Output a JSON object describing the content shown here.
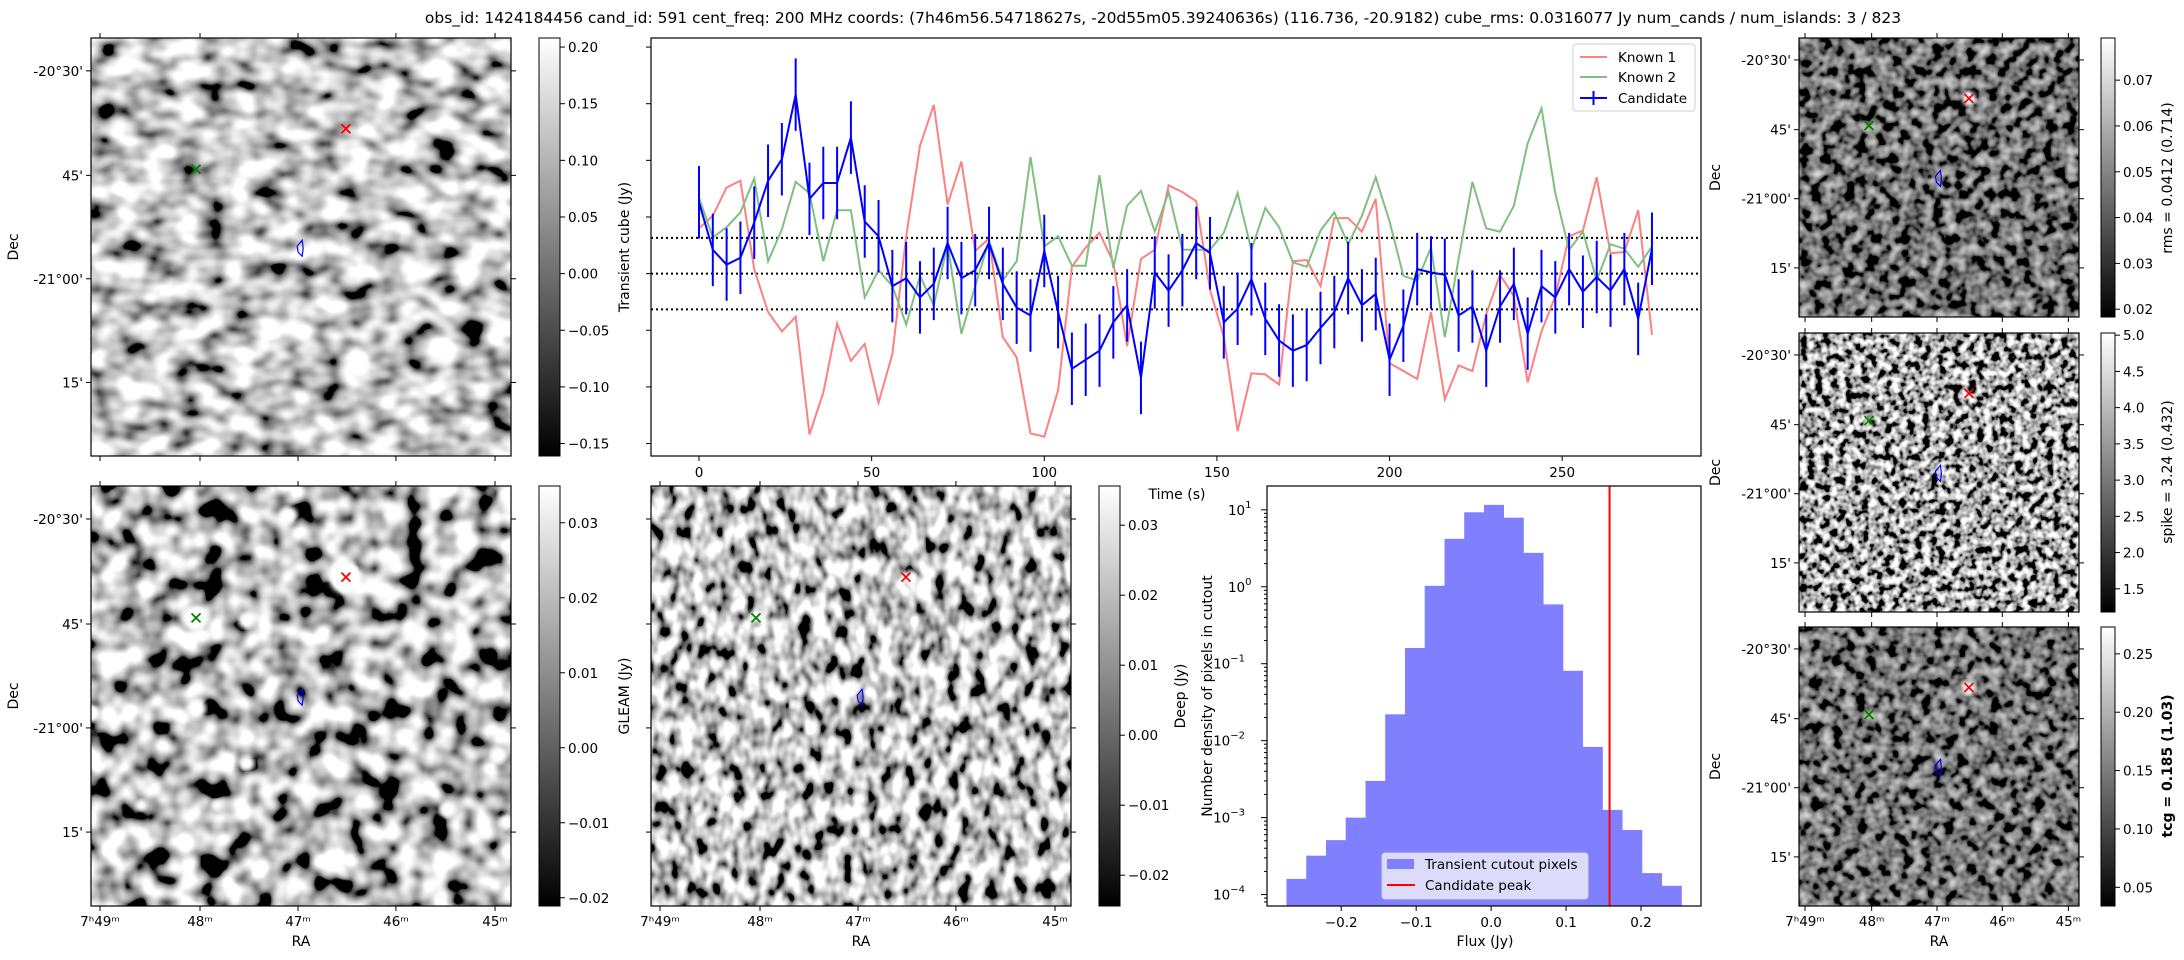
{
  "title": "obs_id: 1424184456 cand_id: 591 cent_freq: 200 MHz coords: (7h46m56.54718627s, -20d55m05.39240636s) (116.736, -20.9182) cube_rms: 0.0316077 Jy num_cands / num_islands: 3 / 823",
  "axes": {
    "ra_label": "RA",
    "dec_label": "Dec",
    "ra_ticks": [
      "7ʰ49ᵐ",
      "48ᵐ",
      "47ᵐ",
      "46ᵐ",
      "45ᵐ"
    ],
    "dec_ticks": [
      "-20°30'",
      "45'",
      "-21°00'",
      "15'"
    ]
  },
  "colors": {
    "known1": "#ff8080",
    "known2": "#80bf80",
    "candidate": "#0000ff",
    "hist": "#8080ff",
    "peak": "#ff0000"
  },
  "colorbars": {
    "transient": {
      "range": [
        -0.161,
        0.208
      ],
      "ticks": [
        [
          "0.20",
          0.2
        ],
        [
          "0.15",
          0.15
        ],
        [
          "0.10",
          0.1
        ],
        [
          "0.05",
          0.05
        ],
        [
          "0.00",
          0.0
        ],
        [
          "−0.05",
          -0.05
        ],
        [
          "−0.10",
          -0.1
        ],
        [
          "−0.15",
          -0.15
        ]
      ]
    },
    "gleam": {
      "label": "GLEAM (Jy)",
      "range": [
        -0.0211,
        0.0349
      ],
      "ticks": [
        [
          "0.03",
          0.03
        ],
        [
          "0.02",
          0.02
        ],
        [
          "0.01",
          0.01
        ],
        [
          "0.00",
          0.0
        ],
        [
          "−0.01",
          -0.01
        ],
        [
          "−0.02",
          -0.02
        ]
      ]
    },
    "deep": {
      "label": "Deep (Jy)",
      "range": [
        -0.0244,
        0.0356
      ],
      "ticks": [
        [
          "0.03",
          0.03
        ],
        [
          "0.02",
          0.02
        ],
        [
          "0.01",
          0.01
        ],
        [
          "0.00",
          0.0
        ],
        [
          "−0.01",
          -0.01
        ],
        [
          "−0.02",
          -0.02
        ]
      ]
    },
    "rms": {
      "label": "rms = 0.0412 (0.714)",
      "range": [
        0.0183,
        0.0792
      ],
      "ticks": [
        [
          "0.07",
          0.07
        ],
        [
          "0.06",
          0.06
        ],
        [
          "0.05",
          0.05
        ],
        [
          "0.04",
          0.04
        ],
        [
          "0.03",
          0.03
        ],
        [
          "0.02",
          0.02
        ]
      ]
    },
    "spike": {
      "label": "spike = 3.24 (0.432)",
      "range": [
        1.18,
        5.03
      ],
      "ticks": [
        [
          "5.0",
          5.0
        ],
        [
          "4.5",
          4.5
        ],
        [
          "4.0",
          4.0
        ],
        [
          "3.5",
          3.5
        ],
        [
          "3.0",
          3.0
        ],
        [
          "2.5",
          2.5
        ],
        [
          "2.0",
          2.0
        ],
        [
          "1.5",
          1.5
        ]
      ]
    },
    "tcg": {
      "label": "tcg = 0.185 (1.03)",
      "range": [
        0.034,
        0.273
      ],
      "ticks": [
        [
          "0.25",
          0.25
        ],
        [
          "0.20",
          0.2
        ],
        [
          "0.15",
          0.15
        ],
        [
          "0.10",
          0.1
        ],
        [
          "0.05",
          0.05
        ]
      ]
    }
  },
  "chart_data": [
    {
      "type": "line",
      "xlabel": "Time (s)",
      "ylabel": "Transient cube (Jy)",
      "xlim": [
        -13.9,
        290.2
      ],
      "ylim": [
        -0.161,
        0.208
      ],
      "xticks": [
        0,
        50,
        100,
        150,
        200,
        250
      ],
      "hlines": [
        0.0316,
        0.0,
        -0.0316
      ],
      "legend_position": "top-right",
      "x": [
        0,
        4,
        8,
        12,
        16,
        20,
        24,
        28,
        32,
        36,
        40,
        44,
        48,
        52,
        56,
        60,
        64,
        68,
        72,
        76,
        80,
        84,
        88,
        92,
        96,
        100,
        104,
        108,
        112,
        116,
        120,
        124,
        128,
        132,
        136,
        140,
        144,
        148,
        152,
        156,
        160,
        164,
        168,
        172,
        176,
        180,
        184,
        188,
        192,
        196,
        200,
        204,
        208,
        212,
        216,
        220,
        224,
        228,
        232,
        236,
        240,
        244,
        248,
        252,
        256,
        260,
        264,
        268,
        272,
        276
      ],
      "series": [
        {
          "name": "Known 1",
          "values": [
            0.04,
            0.051,
            0.076,
            0.082,
            0.004,
            -0.034,
            -0.051,
            -0.038,
            -0.142,
            -0.105,
            -0.044,
            -0.077,
            -0.062,
            -0.114,
            -0.071,
            0.033,
            0.113,
            0.149,
            0.061,
            0.099,
            0.02,
            0.031,
            -0.056,
            -0.074,
            -0.141,
            -0.144,
            -0.103,
            0.006,
            0.023,
            0.036,
            0.01,
            -0.064,
            0.013,
            0.021,
            0.078,
            0.072,
            0.064,
            -0.014,
            -0.056,
            -0.139,
            -0.088,
            -0.089,
            -0.098,
            0.011,
            0.012,
            -0.011,
            0.049,
            0.049,
            0.037,
            0.066,
            -0.079,
            -0.086,
            -0.093,
            -0.034,
            -0.111,
            -0.081,
            -0.086,
            -0.036,
            -0.001,
            -0.02,
            -0.096,
            -0.051,
            -0.02,
            0.033,
            0.038,
            0.085,
            0.018,
            0.019,
            0.056,
            -0.054
          ]
        },
        {
          "name": "Known 2",
          "values": [
            0.067,
            0.032,
            0.041,
            0.054,
            0.084,
            0.011,
            0.039,
            0.081,
            0.071,
            0.011,
            0.056,
            0.056,
            -0.021,
            0.003,
            -0.011,
            -0.045,
            -0.002,
            -0.028,
            0.026,
            -0.053,
            -0.011,
            0.029,
            -0.006,
            0.011,
            0.103,
            0.024,
            0.033,
            0.007,
            0.007,
            0.087,
            0.005,
            0.06,
            0.073,
            0.037,
            0.072,
            0.021,
            0.021,
            0.021,
            0.036,
            0.071,
            0.021,
            0.058,
            0.041,
            0.01,
            0.006,
            0.038,
            0.054,
            0.026,
            0.051,
            0.085,
            0.046,
            -0.002,
            -0.006,
            0.023,
            -0.056,
            0.013,
            0.081,
            0.04,
            0.037,
            0.06,
            0.115,
            0.146,
            0.071,
            0.021,
            0.037,
            -0.006,
            0.026,
            0.022,
            0.006,
            0.024
          ]
        },
        {
          "name": "Candidate",
          "yerr": 0.032,
          "values": [
            0.063,
            0.021,
            0.008,
            0.014,
            0.045,
            0.082,
            0.101,
            0.158,
            0.066,
            0.08,
            0.08,
            0.12,
            0.046,
            0.033,
            -0.011,
            -0.004,
            -0.021,
            -0.009,
            0.027,
            -0.004,
            0.003,
            0.027,
            -0.009,
            -0.03,
            -0.037,
            0.02,
            -0.034,
            -0.084,
            -0.076,
            -0.068,
            -0.043,
            -0.028,
            -0.092,
            0.001,
            -0.015,
            0.003,
            0.027,
            0.018,
            -0.043,
            -0.031,
            -0.005,
            -0.04,
            -0.059,
            -0.068,
            -0.063,
            -0.048,
            -0.034,
            -0.004,
            -0.028,
            -0.018,
            -0.076,
            -0.046,
            0.004,
            0.001,
            -0.001,
            -0.037,
            -0.029,
            -0.068,
            -0.029,
            -0.009,
            -0.053,
            -0.011,
            -0.021,
            0.004,
            -0.016,
            -0.003,
            -0.015,
            0.004,
            -0.04,
            0.022
          ]
        }
      ]
    },
    {
      "type": "bar",
      "xlabel": "Flux (Jy)",
      "ylabel": "Number density of pixels in cutout",
      "yscale": "log",
      "xlim": [
        -0.299,
        0.28
      ],
      "ylim": [
        7.1e-05,
        20.4
      ],
      "xticks": [
        [
          "−0.2",
          -0.2
        ],
        [
          "−0.1",
          -0.1
        ],
        [
          "0.0",
          0.0
        ],
        [
          "0.1",
          0.1
        ],
        [
          "0.2",
          0.2
        ]
      ],
      "ytick_base": "10",
      "ytick_exponents": [
        "1",
        "0",
        "−1",
        "−2",
        "−3",
        "−4"
      ],
      "bin_edges": [
        -0.273,
        -0.2467,
        -0.2203,
        -0.194,
        -0.1676,
        -0.1413,
        -0.1149,
        -0.0886,
        -0.0622,
        -0.0359,
        -0.0095,
        0.0168,
        0.0432,
        0.0695,
        0.0959,
        0.1222,
        0.1486,
        0.1749,
        0.2013,
        0.2276,
        0.254
      ],
      "values": [
        0.00016,
        0.00032,
        0.00051,
        0.001,
        0.003,
        0.022,
        0.16,
        1.03,
        4.2,
        9.3,
        11.6,
        7.9,
        2.76,
        0.59,
        0.081,
        0.0083,
        0.00126,
        0.00069,
        0.00019,
        0.00013
      ],
      "candidate_peak": 0.158,
      "legend": [
        "Transient cutout pixels",
        "Candidate peak"
      ],
      "legend_position": "bottom-center"
    }
  ]
}
